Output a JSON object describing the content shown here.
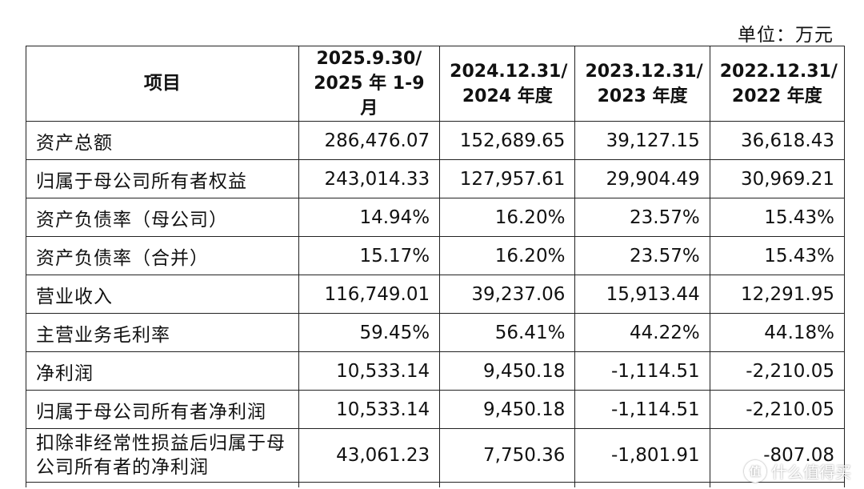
{
  "unit_label": "单位：万元",
  "header": {
    "item": "项目",
    "cols": [
      [
        "2025.9.30/",
        "2025 年 1-9 月"
      ],
      [
        "2024.12.31/",
        "2024 年度"
      ],
      [
        "2023.12.31/",
        "2023 年度"
      ],
      [
        "2022.12.31/",
        "2022 年度"
      ]
    ]
  },
  "rows": [
    {
      "label": "资产总额",
      "values": [
        "286,476.07",
        "152,689.65",
        "39,127.15",
        "36,618.43"
      ]
    },
    {
      "label": "归属于母公司所有者权益",
      "values": [
        "243,014.33",
        "127,957.61",
        "29,904.49",
        "30,969.21"
      ]
    },
    {
      "label": "资产负债率（母公司）",
      "values": [
        "14.94%",
        "16.20%",
        "23.57%",
        "15.43%"
      ]
    },
    {
      "label": "资产负债率（合并）",
      "values": [
        "15.17%",
        "16.20%",
        "23.57%",
        "15.43%"
      ]
    },
    {
      "label": "营业收入",
      "values": [
        "116,749.01",
        "39,237.06",
        "15,913.44",
        "12,291.95"
      ]
    },
    {
      "label": "主营业务毛利率",
      "values": [
        "59.45%",
        "56.41%",
        "44.22%",
        "44.18%"
      ]
    },
    {
      "label": "净利润",
      "values": [
        "10,533.14",
        "9,450.18",
        "-1,114.51",
        "-2,210.05"
      ]
    },
    {
      "label": "归属于母公司所有者净利润",
      "values": [
        "10,533.14",
        "9,450.18",
        "-1,114.51",
        "-2,210.05"
      ]
    },
    {
      "label": "扣除非经常性损益后归属于母公司所有者的净利润",
      "values": [
        "43,061.23",
        "7,750.36",
        "-1,801.91",
        "-807.08"
      ]
    }
  ],
  "watermark": {
    "icon": "zhi-logo-icon",
    "glyph": "值",
    "text": "什么值得买"
  }
}
